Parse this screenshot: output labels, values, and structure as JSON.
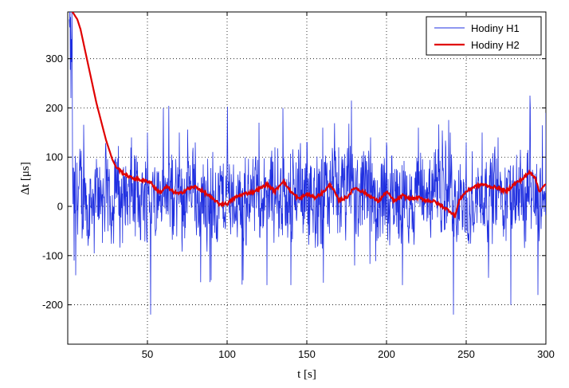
{
  "chart_data": {
    "type": "line",
    "title": "",
    "xlabel": "t [s]",
    "ylabel": "Δt [μs]",
    "xlim": [
      0,
      300
    ],
    "ylim": [
      -280,
      395
    ],
    "xticks": [
      50,
      100,
      150,
      200,
      250,
      300
    ],
    "xtick_labels": [
      "50",
      "100",
      "150",
      "200",
      "250",
      "300"
    ],
    "yticks": [
      -200,
      -100,
      0,
      100,
      200,
      300
    ],
    "ytick_labels": [
      "-200",
      "-100",
      "0",
      "100",
      "200",
      "300"
    ],
    "grid": true,
    "legend": {
      "placement": "top-right",
      "entries": [
        "Hodiny H1",
        "Hodiny H2"
      ]
    },
    "colors": {
      "h1": "#1f2fe0",
      "h2": "#e00000"
    },
    "series": [
      {
        "name": "Hodiny H1",
        "note": "dense noisy signal sampled ~every 0.2 s",
        "x_step": 0.2,
        "envelope_points": [
          [
            1,
            380
          ],
          [
            2,
            220
          ],
          [
            3,
            100
          ],
          [
            4,
            -110
          ],
          [
            5,
            -140
          ],
          [
            8,
            80
          ],
          [
            12,
            -60
          ],
          [
            20,
            80
          ],
          [
            30,
            100
          ],
          [
            40,
            140
          ],
          [
            50,
            150
          ],
          [
            52,
            -220
          ],
          [
            55,
            -60
          ],
          [
            60,
            200
          ],
          [
            70,
            150
          ],
          [
            80,
            130
          ],
          [
            90,
            -150
          ],
          [
            100,
            130
          ],
          [
            110,
            -150
          ],
          [
            120,
            170
          ],
          [
            125,
            -160
          ],
          [
            130,
            120
          ],
          [
            135,
            200
          ],
          [
            140,
            -160
          ],
          [
            150,
            130
          ],
          [
            160,
            160
          ],
          [
            170,
            120
          ],
          [
            178,
            215
          ],
          [
            180,
            -120
          ],
          [
            190,
            140
          ],
          [
            200,
            130
          ],
          [
            210,
            -160
          ],
          [
            220,
            160
          ],
          [
            230,
            110
          ],
          [
            240,
            150
          ],
          [
            242,
            -220
          ],
          [
            250,
            130
          ],
          [
            260,
            150
          ],
          [
            270,
            140
          ],
          [
            278,
            -200
          ],
          [
            290,
            225
          ],
          [
            295,
            -180
          ],
          [
            300,
            190
          ]
        ]
      },
      {
        "name": "Hodiny H2",
        "points": [
          [
            2,
            400
          ],
          [
            6,
            380
          ],
          [
            8,
            360
          ],
          [
            10,
            330
          ],
          [
            12,
            300
          ],
          [
            14,
            270
          ],
          [
            16,
            240
          ],
          [
            18,
            210
          ],
          [
            20,
            185
          ],
          [
            22,
            160
          ],
          [
            24,
            135
          ],
          [
            26,
            115
          ],
          [
            28,
            95
          ],
          [
            30,
            82
          ],
          [
            33,
            72
          ],
          [
            36,
            65
          ],
          [
            40,
            58
          ],
          [
            44,
            55
          ],
          [
            48,
            52
          ],
          [
            52,
            50
          ],
          [
            55,
            35
          ],
          [
            58,
            28
          ],
          [
            62,
            40
          ],
          [
            66,
            30
          ],
          [
            70,
            25
          ],
          [
            75,
            35
          ],
          [
            80,
            40
          ],
          [
            85,
            30
          ],
          [
            90,
            18
          ],
          [
            95,
            5
          ],
          [
            100,
            5
          ],
          [
            105,
            18
          ],
          [
            110,
            25
          ],
          [
            115,
            28
          ],
          [
            120,
            35
          ],
          [
            125,
            45
          ],
          [
            130,
            30
          ],
          [
            135,
            52
          ],
          [
            140,
            30
          ],
          [
            145,
            15
          ],
          [
            150,
            25
          ],
          [
            155,
            18
          ],
          [
            160,
            28
          ],
          [
            165,
            45
          ],
          [
            170,
            12
          ],
          [
            175,
            18
          ],
          [
            180,
            38
          ],
          [
            185,
            30
          ],
          [
            190,
            20
          ],
          [
            195,
            10
          ],
          [
            200,
            30
          ],
          [
            205,
            10
          ],
          [
            210,
            22
          ],
          [
            215,
            15
          ],
          [
            220,
            18
          ],
          [
            225,
            12
          ],
          [
            230,
            10
          ],
          [
            235,
            0
          ],
          [
            240,
            -10
          ],
          [
            243,
            -20
          ],
          [
            246,
            15
          ],
          [
            250,
            30
          ],
          [
            255,
            40
          ],
          [
            260,
            45
          ],
          [
            265,
            40
          ],
          [
            270,
            38
          ],
          [
            275,
            30
          ],
          [
            280,
            45
          ],
          [
            285,
            55
          ],
          [
            290,
            70
          ],
          [
            293,
            60
          ],
          [
            296,
            30
          ],
          [
            300,
            45
          ]
        ]
      }
    ]
  }
}
